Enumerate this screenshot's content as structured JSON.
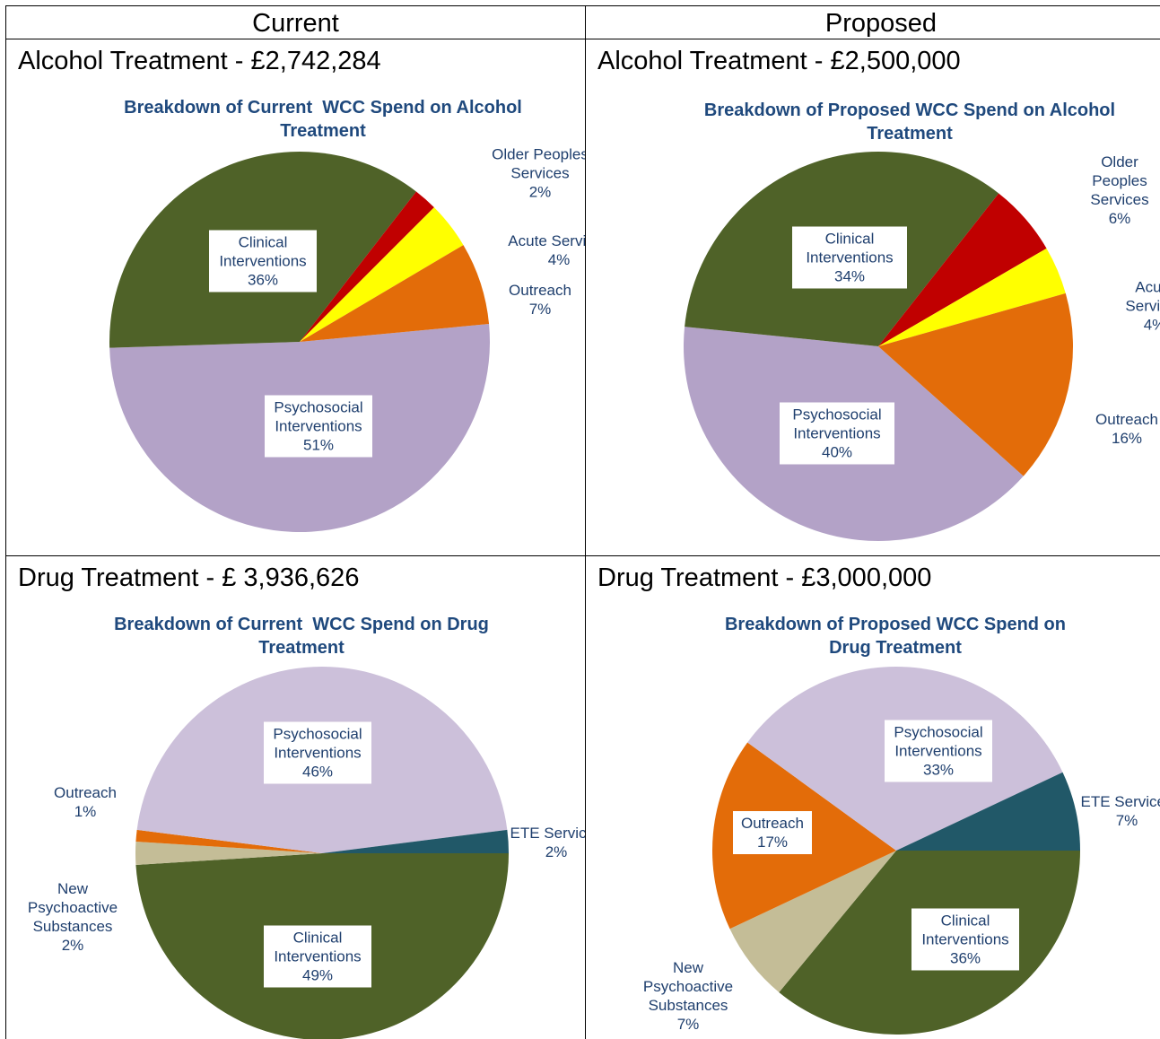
{
  "table": {
    "headers": [
      "Current",
      "Proposed"
    ],
    "cells": [
      "Alcohol Treatment - £2,742,284",
      "Alcohol Treatment - £2,500,000",
      "Drug Treatment - £ 3,936,626",
      "Drug Treatment - £3,000,000"
    ]
  },
  "chart_data": [
    {
      "type": "pie",
      "title": "Breakdown of Current  WCC Spend on Alcohol Treatment",
      "categories": [
        "Psychosocial Interventions",
        "Clinical Interventions",
        "Older Peoples Services",
        "Acute Services",
        "Outreach"
      ],
      "values": [
        51,
        36,
        2,
        4,
        7
      ],
      "value_labels": [
        "51%",
        "36%",
        "2%",
        "4%",
        "7%"
      ],
      "colors": [
        "#b3a2c7",
        "#4f6228",
        "#c00000",
        "#ffff00",
        "#e36c09"
      ]
    },
    {
      "type": "pie",
      "title": "Breakdown of Proposed WCC Spend on Alcohol Treatment",
      "categories": [
        "Psychosocial Interventions",
        "Clinical Interventions",
        "Older Peoples Services",
        "Acute Services",
        "Outreach"
      ],
      "values": [
        40,
        34,
        6,
        4,
        16
      ],
      "value_labels": [
        "40%",
        "34%",
        "6%",
        "4%",
        "16%"
      ],
      "colors": [
        "#b3a2c7",
        "#4f6228",
        "#c00000",
        "#ffff00",
        "#e36c09"
      ]
    },
    {
      "type": "pie",
      "title": "Breakdown of Current  WCC Spend on Drug Treatment",
      "categories": [
        "Clinical Interventions",
        "New Psychoactive Substances",
        "Outreach",
        "Psychosocial Interventions",
        "ETE Services"
      ],
      "values": [
        49,
        2,
        1,
        46,
        2
      ],
      "value_labels": [
        "49%",
        "2%",
        "1%",
        "46%",
        "2%"
      ],
      "colors": [
        "#4f6228",
        "#c4bd97",
        "#e36c09",
        "#ccc0da",
        "#215868"
      ]
    },
    {
      "type": "pie",
      "title": "Breakdown of Proposed WCC Spend on Drug Treatment",
      "categories": [
        "Clinical Interventions",
        "New Psychoactive Substances",
        "Outreach",
        "Psychosocial Interventions",
        "ETE Services"
      ],
      "values": [
        36,
        7,
        17,
        33,
        7
      ],
      "value_labels": [
        "36%",
        "7%",
        "17%",
        "33%",
        "7%"
      ],
      "colors": [
        "#4f6228",
        "#c4bd97",
        "#e36c09",
        "#ccc0da",
        "#215868"
      ]
    }
  ]
}
